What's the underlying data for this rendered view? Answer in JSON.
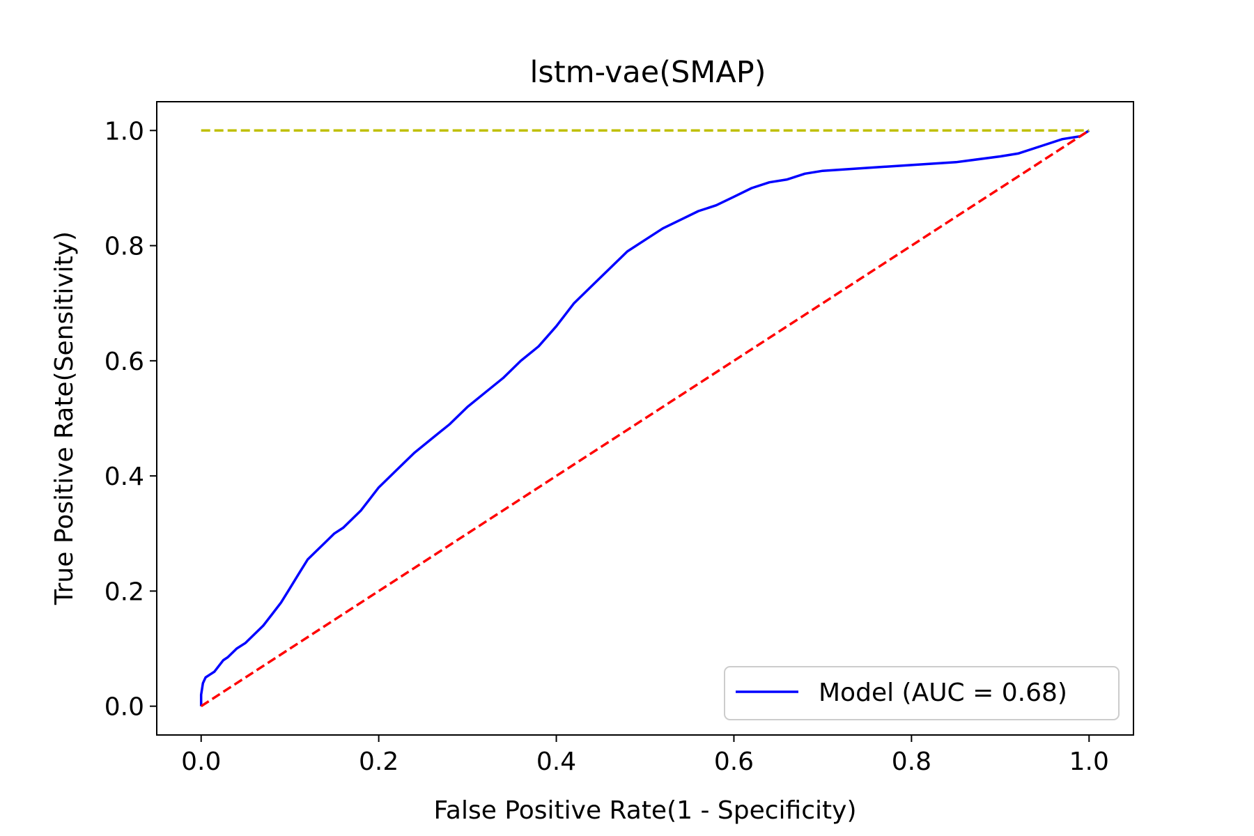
{
  "chart_data": {
    "type": "line",
    "title": "lstm-vae(SMAP)",
    "xlabel": "False Positive Rate(1 - Specificity)",
    "ylabel": "True Positive Rate(Sensitivity)",
    "xlim": [
      -0.05,
      1.05
    ],
    "ylim": [
      -0.05,
      1.05
    ],
    "xticks": [
      0.0,
      0.2,
      0.4,
      0.6,
      0.8,
      1.0
    ],
    "yticks": [
      0.0,
      0.2,
      0.4,
      0.6,
      0.8,
      1.0
    ],
    "xtick_labels": [
      "0.0",
      "0.2",
      "0.4",
      "0.6",
      "0.8",
      "1.0"
    ],
    "ytick_labels": [
      "0.0",
      "0.2",
      "0.4",
      "0.6",
      "0.8",
      "1.0"
    ],
    "grid": false,
    "legend_position": "lower-right",
    "series": [
      {
        "name": "Model (AUC = 0.68)",
        "color": "#0000ff",
        "style": "solid",
        "x": [
          0.0,
          0.0,
          0.002,
          0.005,
          0.01,
          0.015,
          0.02,
          0.025,
          0.03,
          0.04,
          0.05,
          0.06,
          0.07,
          0.08,
          0.09,
          0.1,
          0.11,
          0.12,
          0.13,
          0.14,
          0.15,
          0.16,
          0.17,
          0.18,
          0.19,
          0.2,
          0.22,
          0.24,
          0.26,
          0.28,
          0.3,
          0.32,
          0.34,
          0.36,
          0.38,
          0.4,
          0.42,
          0.44,
          0.46,
          0.48,
          0.5,
          0.52,
          0.54,
          0.56,
          0.58,
          0.6,
          0.62,
          0.64,
          0.66,
          0.68,
          0.7,
          0.75,
          0.8,
          0.85,
          0.9,
          0.92,
          0.95,
          0.97,
          0.99,
          1.0
        ],
        "y": [
          0.0,
          0.02,
          0.04,
          0.05,
          0.055,
          0.06,
          0.07,
          0.08,
          0.085,
          0.1,
          0.11,
          0.125,
          0.14,
          0.16,
          0.18,
          0.205,
          0.23,
          0.255,
          0.27,
          0.285,
          0.3,
          0.31,
          0.325,
          0.34,
          0.36,
          0.38,
          0.41,
          0.44,
          0.465,
          0.49,
          0.52,
          0.545,
          0.57,
          0.6,
          0.625,
          0.66,
          0.7,
          0.73,
          0.76,
          0.79,
          0.81,
          0.83,
          0.845,
          0.86,
          0.87,
          0.885,
          0.9,
          0.91,
          0.915,
          0.925,
          0.93,
          0.935,
          0.94,
          0.945,
          0.955,
          0.96,
          0.975,
          0.985,
          0.99,
          1.0
        ]
      },
      {
        "color": "#ff0000",
        "style": "dashed",
        "x": [
          0.0,
          1.0
        ],
        "y": [
          0.0,
          1.0
        ]
      },
      {
        "color": "#bfbf00",
        "style": "dashed",
        "x": [
          0.0,
          1.0
        ],
        "y": [
          1.0,
          1.0
        ]
      }
    ]
  }
}
